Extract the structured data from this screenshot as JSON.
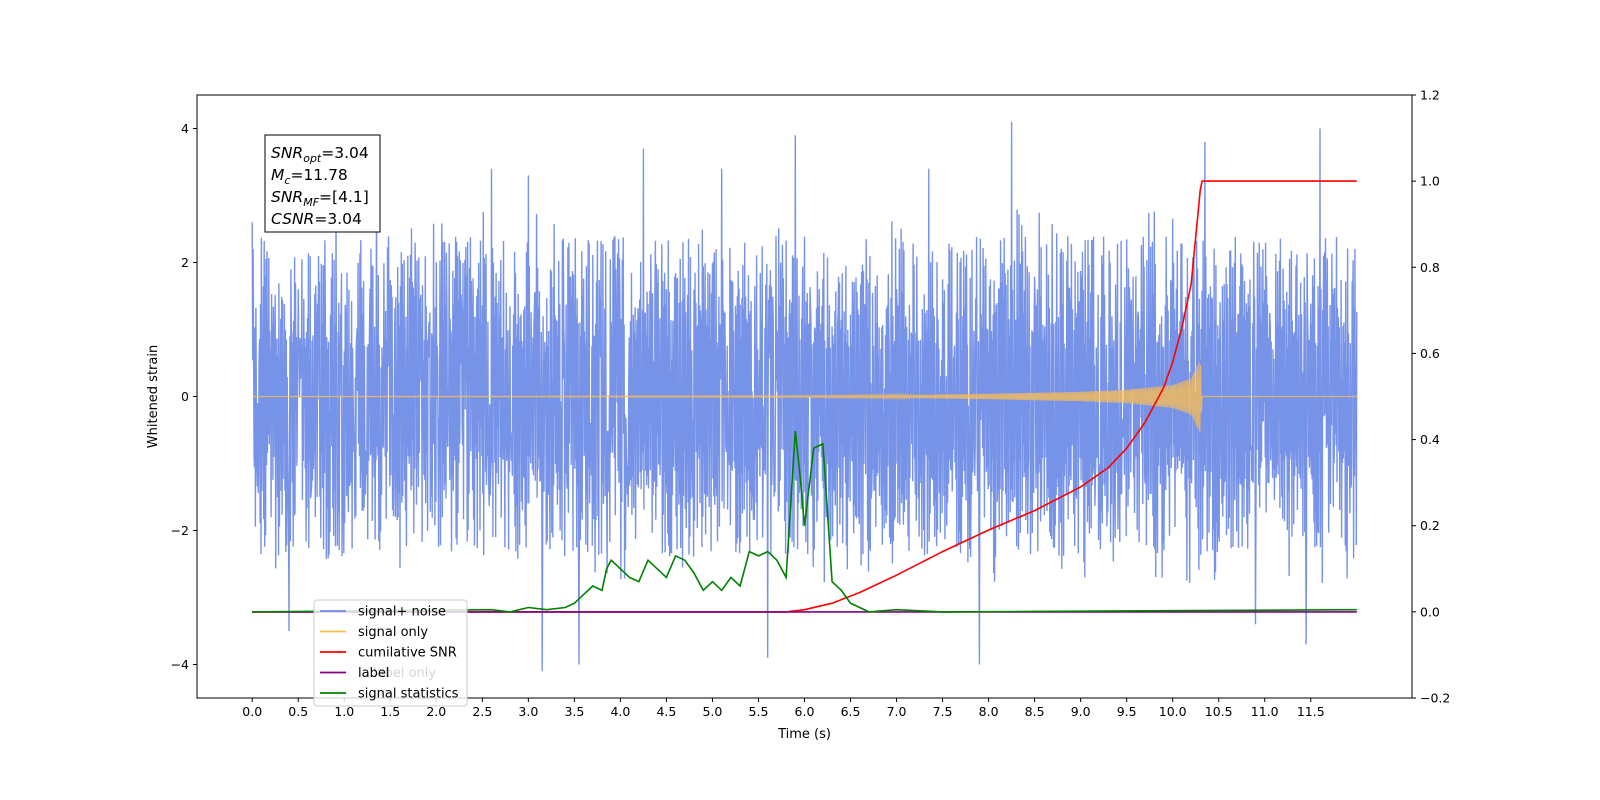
{
  "chart_data": {
    "type": "line",
    "xlabel": "Time (s)",
    "ylabel": "Whitened strain",
    "xlim": [
      -0.6,
      12.6
    ],
    "ylim": [
      -4.5,
      4.5
    ],
    "y2lim": [
      -0.2,
      1.2
    ],
    "x_ticks": [
      0.0,
      0.5,
      1.0,
      1.5,
      2.0,
      2.5,
      3.0,
      3.5,
      4.0,
      4.5,
      5.0,
      5.5,
      6.0,
      6.5,
      7.0,
      7.5,
      8.0,
      8.5,
      9.0,
      9.5,
      10.0,
      10.5,
      11.0,
      11.5
    ],
    "y_ticks": [
      -4,
      -2,
      0,
      2,
      4
    ],
    "y2_ticks": [
      -0.2,
      0.0,
      0.2,
      0.4,
      0.6,
      0.8,
      1.0,
      1.2
    ],
    "grid": false,
    "legend_position": "lower-left",
    "colors": {
      "signal_noise": "#6b8ae6",
      "signal_only": "#ffbf4d",
      "cumulative": "#ff0000",
      "label": "#800080",
      "stats": "#008000"
    },
    "annotation": {
      "lines": [
        {
          "sym": "SNR",
          "sub": "opt",
          "val": "=3.04"
        },
        {
          "sym": "M",
          "sub": "c",
          "val": "=11.78"
        },
        {
          "sym": "SNR",
          "sub": "MF",
          "val": "=[4.1]"
        },
        {
          "sym": "CSNR",
          "sub": "",
          "val": "=3.04"
        }
      ]
    },
    "legend": [
      {
        "label": "signal+ noise",
        "color": "#6b8ae6"
      },
      {
        "label": "signal only",
        "color": "#ffbf4d"
      },
      {
        "label": "cumilative SNR",
        "color": "#ff0000"
      },
      {
        "label": "label",
        "color": "#800080"
      },
      {
        "label": "signal statistics",
        "color": "#008000"
      }
    ],
    "legend_hidden_text": "label only",
    "noise_envelope": {
      "x": [
        0.0,
        12.0
      ],
      "typical_upper": 2.2,
      "typical_lower": -2.2,
      "peaks": [
        {
          "x": 0.0,
          "y": 2.6
        },
        {
          "x": 1.35,
          "y": 3.3
        },
        {
          "x": 2.6,
          "y": 3.4
        },
        {
          "x": 3.0,
          "y": 3.3
        },
        {
          "x": 4.25,
          "y": 3.7
        },
        {
          "x": 5.1,
          "y": 3.4
        },
        {
          "x": 5.9,
          "y": 3.9
        },
        {
          "x": 7.35,
          "y": 3.4
        },
        {
          "x": 8.25,
          "y": 4.1
        },
        {
          "x": 10.35,
          "y": 3.8
        },
        {
          "x": 11.6,
          "y": 4.0
        },
        {
          "x": 0.4,
          "y": -3.5
        },
        {
          "x": 3.15,
          "y": -4.1
        },
        {
          "x": 3.55,
          "y": -4.0
        },
        {
          "x": 5.6,
          "y": -3.9
        },
        {
          "x": 7.9,
          "y": -4.0
        },
        {
          "x": 10.9,
          "y": -3.4
        },
        {
          "x": 11.45,
          "y": -3.7
        }
      ]
    },
    "signal_only": {
      "x": [
        0.0,
        6.0,
        7.0,
        8.0,
        9.0,
        9.5,
        10.0,
        10.2,
        10.3,
        10.32,
        12.0
      ],
      "amplitude": [
        0.0,
        0.01,
        0.02,
        0.04,
        0.07,
        0.1,
        0.17,
        0.27,
        0.55,
        0.0,
        0.0
      ]
    },
    "cumulative_snr": {
      "axis": "right",
      "x": [
        0.0,
        5.8,
        6.0,
        6.3,
        6.6,
        7.0,
        7.5,
        8.0,
        8.5,
        9.0,
        9.3,
        9.5,
        9.7,
        9.9,
        10.0,
        10.1,
        10.2,
        10.3,
        10.32,
        12.0
      ],
      "y": [
        0.0,
        0.0,
        0.005,
        0.02,
        0.045,
        0.085,
        0.14,
        0.19,
        0.235,
        0.29,
        0.335,
        0.38,
        0.44,
        0.52,
        0.58,
        0.66,
        0.76,
        0.98,
        1.0,
        1.0
      ]
    },
    "label_line": {
      "axis": "right",
      "x": [
        0.0,
        12.0
      ],
      "y": [
        0.0,
        0.0
      ]
    },
    "signal_statistics": {
      "axis": "right",
      "x": [
        0.0,
        2.6,
        2.8,
        3.0,
        3.2,
        3.4,
        3.5,
        3.6,
        3.7,
        3.8,
        3.85,
        3.9,
        4.0,
        4.1,
        4.2,
        4.3,
        4.4,
        4.5,
        4.6,
        4.7,
        4.8,
        4.9,
        5.0,
        5.1,
        5.2,
        5.3,
        5.4,
        5.5,
        5.6,
        5.7,
        5.8,
        5.9,
        5.95,
        6.0,
        6.1,
        6.2,
        6.3,
        6.4,
        6.5,
        6.6,
        6.7,
        7.0,
        7.5,
        12.0
      ],
      "y": [
        0.0,
        0.005,
        0.0,
        0.01,
        0.005,
        0.01,
        0.02,
        0.04,
        0.06,
        0.05,
        0.1,
        0.12,
        0.1,
        0.08,
        0.07,
        0.12,
        0.1,
        0.08,
        0.13,
        0.12,
        0.09,
        0.05,
        0.07,
        0.05,
        0.08,
        0.06,
        0.14,
        0.13,
        0.14,
        0.12,
        0.08,
        0.42,
        0.32,
        0.2,
        0.38,
        0.39,
        0.07,
        0.05,
        0.02,
        0.01,
        0.0,
        0.005,
        0.0,
        0.005
      ]
    }
  }
}
